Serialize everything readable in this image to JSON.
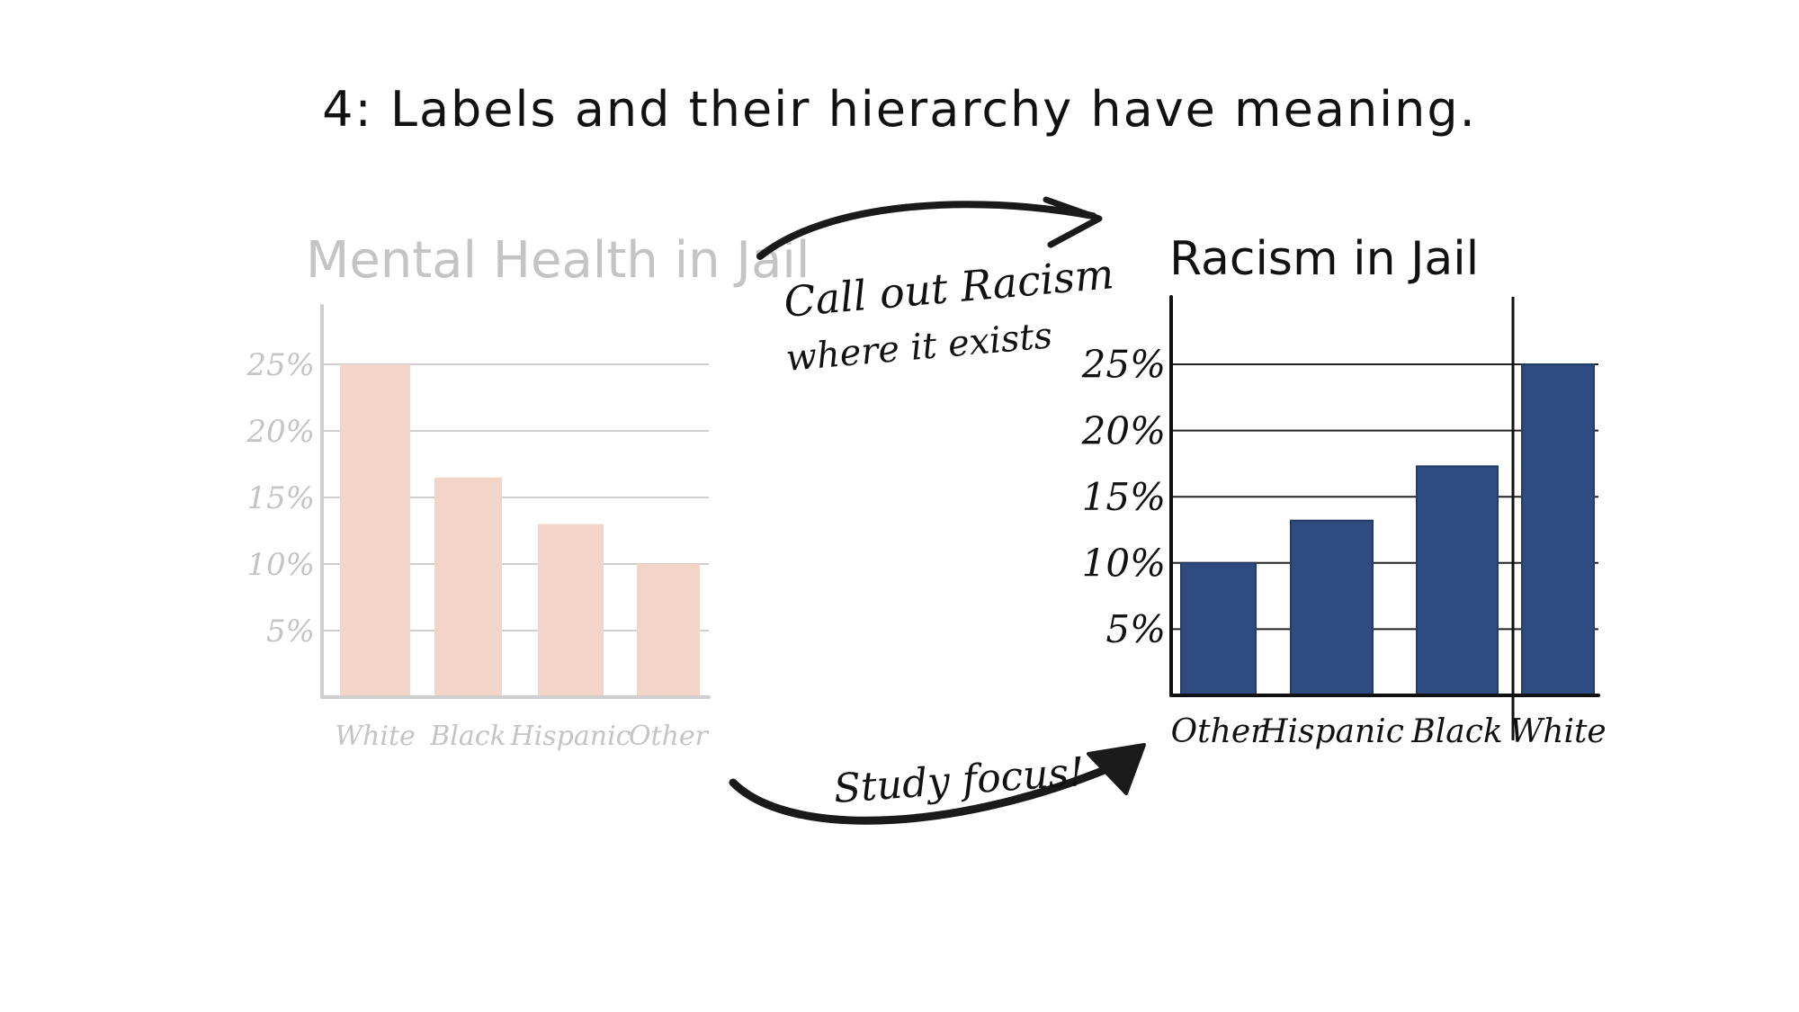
{
  "heading": "4: Labels and their hierarchy have meaning.",
  "annotations": {
    "top_arrow_text_line1": "Call out Racism",
    "top_arrow_text_line2": "where it exists",
    "bottom_arrow_text": "Study focus!"
  },
  "colors": {
    "left_bars": "#f2d4c8",
    "left_text": "#c4c4c4",
    "left_axis": "#cfcfcf",
    "right_bars": "#2f4c80",
    "right_text": "#111111",
    "arrow": "#1a1a1a"
  },
  "chart_data": [
    {
      "type": "bar",
      "title": "Mental Health in Jail",
      "categories": [
        "White",
        "Black",
        "Hispanic",
        "Other"
      ],
      "values": [
        25,
        16.5,
        13,
        10
      ],
      "yticks": [
        "5%",
        "10%",
        "15%",
        "20%",
        "25%"
      ],
      "ylim": [
        0,
        28
      ],
      "grid": true,
      "style": "faded"
    },
    {
      "type": "bar",
      "title": "Racism in Jail",
      "categories": [
        "Other",
        "Hispanic",
        "Black",
        "White"
      ],
      "values": [
        10,
        13.2,
        17.3,
        25
      ],
      "yticks": [
        "5%",
        "10%",
        "15%",
        "20%",
        "25%"
      ],
      "ylim": [
        0,
        30
      ],
      "grid": true,
      "style": "emphasized"
    }
  ]
}
